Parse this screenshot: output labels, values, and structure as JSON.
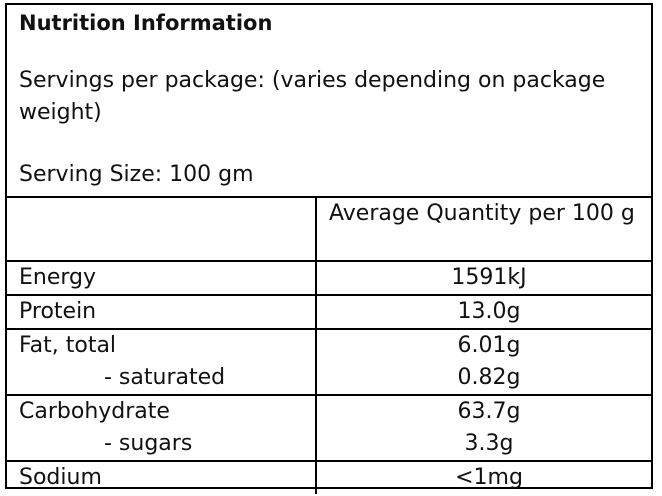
{
  "header": {
    "title": "Nutrition Information",
    "servings": "Servings per package: (varies depending on package weight)",
    "serving_size": "Serving Size: 100 gm"
  },
  "table": {
    "column_header": "Average Quantity per 100 g",
    "rows": [
      [
        [
          "Energy",
          "1591kJ"
        ]
      ],
      [
        [
          "Protein",
          "13.0g"
        ]
      ],
      [
        [
          "Fat, total",
          "6.01g"
        ],
        [
          "- saturated",
          "0.82g"
        ]
      ],
      [
        [
          "Carbohydrate",
          "63.7g"
        ],
        [
          "- sugars",
          "3.3g"
        ]
      ],
      [
        [
          "Sodium",
          "<1mg"
        ]
      ]
    ]
  }
}
